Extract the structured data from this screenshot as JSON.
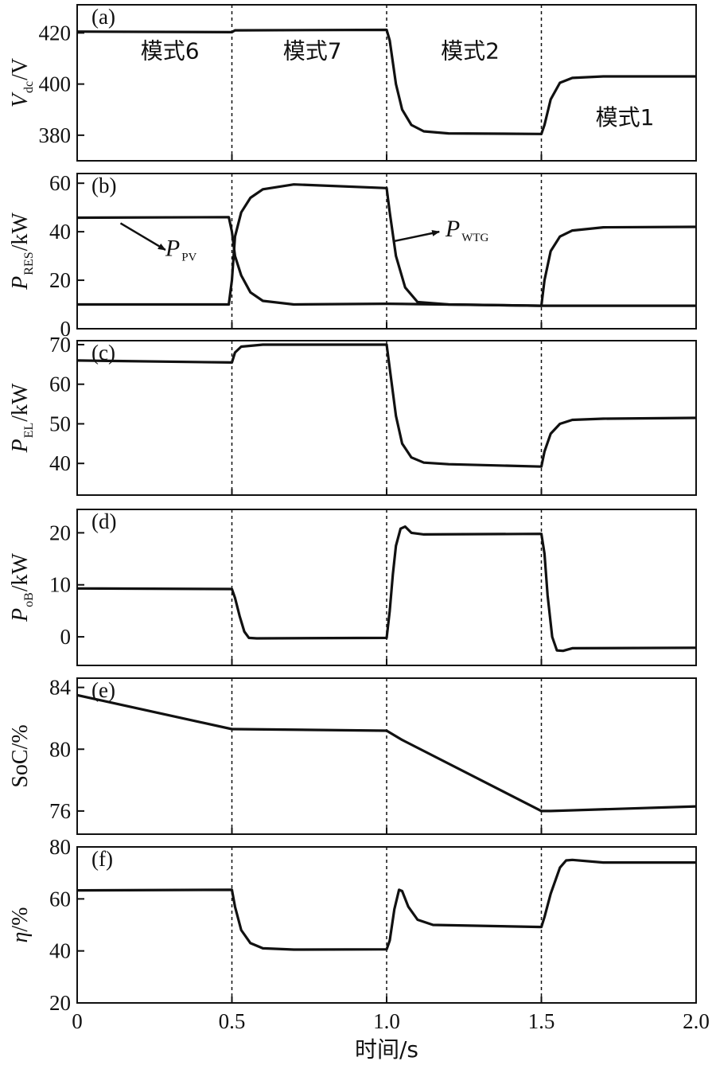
{
  "chart_data": [
    {
      "type": "line",
      "panel_label": "(a)",
      "ylabel": {
        "symbol": "V",
        "sub": "dc",
        "unit": "/V"
      },
      "xlim": [
        0,
        2.0
      ],
      "ylim": [
        370,
        431
      ],
      "yticks": [
        {
          "v": 380,
          "label": "380"
        },
        {
          "v": 400,
          "label": "400"
        },
        {
          "v": 420,
          "label": "420"
        }
      ],
      "mode_labels": [
        {
          "text": "模式6",
          "x": 0.3,
          "y": 410
        },
        {
          "text": "模式7",
          "x": 0.76,
          "y": 410
        },
        {
          "text": "模式2",
          "x": 1.27,
          "y": 410
        },
        {
          "text": "模式1",
          "x": 1.77,
          "y": 384
        }
      ],
      "series": [
        {
          "values": [
            [
              0,
              420.5
            ],
            [
              0.5,
              420.3
            ],
            [
              0.51,
              421.0
            ],
            [
              1.0,
              421.2
            ],
            [
              1.01,
              417
            ],
            [
              1.03,
              400
            ],
            [
              1.05,
              390
            ],
            [
              1.08,
              384
            ],
            [
              1.12,
              381.5
            ],
            [
              1.2,
              380.7
            ],
            [
              1.5,
              380.5
            ],
            [
              1.51,
              384
            ],
            [
              1.53,
              394
            ],
            [
              1.56,
              400.5
            ],
            [
              1.6,
              402.4
            ],
            [
              1.7,
              403
            ],
            [
              2.0,
              403
            ]
          ]
        }
      ]
    },
    {
      "type": "line",
      "panel_label": "(b)",
      "ylabel": {
        "symbol": "P",
        "sub": "RES",
        "unit": "/kW"
      },
      "xlim": [
        0,
        2.0
      ],
      "ylim": [
        0,
        64
      ],
      "yticks": [
        {
          "v": 0,
          "label": "0"
        },
        {
          "v": 20,
          "label": "20"
        },
        {
          "v": 40,
          "label": "40"
        },
        {
          "v": 60,
          "label": "60"
        }
      ],
      "annotations": [
        {
          "symbol": "P",
          "sub": "PV",
          "text_x": 0.285,
          "text_y": 30,
          "arrow_from": [
            0.14,
            43.5
          ],
          "arrow_to": [
            0.285,
            32.5
          ]
        },
        {
          "symbol": "P",
          "sub": "WTG",
          "text_x": 1.19,
          "text_y": 38,
          "arrow_from": [
            1.02,
            36
          ],
          "arrow_to": [
            1.17,
            40
          ]
        }
      ],
      "series": [
        {
          "values": [
            [
              0,
              45.8
            ],
            [
              0.49,
              46
            ],
            [
              0.5,
              40
            ],
            [
              0.51,
              30
            ],
            [
              0.53,
              22
            ],
            [
              0.56,
              15
            ],
            [
              0.6,
              11.5
            ],
            [
              0.7,
              10
            ],
            [
              1.0,
              10.3
            ],
            [
              1.5,
              9.5
            ],
            [
              2.0,
              9.5
            ]
          ]
        },
        {
          "values": [
            [
              0,
              10
            ],
            [
              0.49,
              10
            ],
            [
              0.5,
              20
            ],
            [
              0.51,
              38
            ],
            [
              0.53,
              48
            ],
            [
              0.56,
              54
            ],
            [
              0.6,
              57.5
            ],
            [
              0.7,
              59.5
            ],
            [
              1.0,
              58
            ],
            [
              1.01,
              48
            ],
            [
              1.03,
              30
            ],
            [
              1.06,
              17
            ],
            [
              1.1,
              11
            ],
            [
              1.2,
              10
            ],
            [
              1.5,
              9.5
            ],
            [
              1.51,
              20
            ],
            [
              1.53,
              32
            ],
            [
              1.56,
              38
            ],
            [
              1.6,
              40.5
            ],
            [
              1.7,
              41.8
            ],
            [
              2.0,
              42
            ]
          ]
        }
      ]
    },
    {
      "type": "line",
      "panel_label": "(c)",
      "ylabel": {
        "symbol": "P",
        "sub": "EL",
        "unit": "/kW"
      },
      "xlim": [
        0,
        2.0
      ],
      "ylim": [
        32,
        71
      ],
      "yticks": [
        {
          "v": 40,
          "label": "40"
        },
        {
          "v": 50,
          "label": "50"
        },
        {
          "v": 60,
          "label": "60"
        },
        {
          "v": 70,
          "label": "70"
        }
      ],
      "series": [
        {
          "values": [
            [
              0,
              66
            ],
            [
              0.5,
              65.5
            ],
            [
              0.51,
              68
            ],
            [
              0.53,
              69.5
            ],
            [
              0.6,
              70
            ],
            [
              1.0,
              70
            ],
            [
              1.01,
              64
            ],
            [
              1.03,
              52
            ],
            [
              1.05,
              45
            ],
            [
              1.08,
              41.5
            ],
            [
              1.12,
              40.2
            ],
            [
              1.2,
              39.8
            ],
            [
              1.5,
              39.2
            ],
            [
              1.51,
              43
            ],
            [
              1.53,
              47.5
            ],
            [
              1.56,
              50
            ],
            [
              1.6,
              51
            ],
            [
              1.7,
              51.3
            ],
            [
              2.0,
              51.5
            ]
          ]
        }
      ]
    },
    {
      "type": "line",
      "panel_label": "(d)",
      "ylabel": {
        "symbol": "P",
        "sub": "oB",
        "unit": "/kW"
      },
      "xlim": [
        0,
        2.0
      ],
      "ylim": [
        -5.5,
        24.5
      ],
      "yticks": [
        {
          "v": 0,
          "label": "0"
        },
        {
          "v": 10,
          "label": "10"
        },
        {
          "v": 20,
          "label": "20"
        }
      ],
      "series": [
        {
          "values": [
            [
              0,
              9.3
            ],
            [
              0.5,
              9.2
            ],
            [
              0.51,
              7.5
            ],
            [
              0.525,
              4
            ],
            [
              0.54,
              1
            ],
            [
              0.555,
              -0.2
            ],
            [
              0.58,
              -0.3
            ],
            [
              1.0,
              -0.2
            ],
            [
              1.01,
              5
            ],
            [
              1.02,
              12
            ],
            [
              1.03,
              17.5
            ],
            [
              1.045,
              20.8
            ],
            [
              1.06,
              21.2
            ],
            [
              1.08,
              20
            ],
            [
              1.12,
              19.7
            ],
            [
              1.5,
              19.8
            ],
            [
              1.51,
              16
            ],
            [
              1.52,
              8
            ],
            [
              1.535,
              0
            ],
            [
              1.55,
              -2.6
            ],
            [
              1.57,
              -2.7
            ],
            [
              1.6,
              -2.2
            ],
            [
              2.0,
              -2.1
            ]
          ]
        }
      ]
    },
    {
      "type": "line",
      "panel_label": "(e)",
      "ylabel": {
        "text": "SoC/%"
      },
      "xlim": [
        0,
        2.0
      ],
      "ylim": [
        74.5,
        84.6
      ],
      "yticks": [
        {
          "v": 76,
          "label": "76"
        },
        {
          "v": 80,
          "label": "80"
        },
        {
          "v": 84,
          "label": "84"
        }
      ],
      "series": [
        {
          "values": [
            [
              0,
              83.5
            ],
            [
              0.5,
              81.3
            ],
            [
              0.51,
              81.3
            ],
            [
              1.0,
              81.2
            ],
            [
              1.05,
              80.6
            ],
            [
              1.5,
              76
            ],
            [
              1.53,
              76
            ],
            [
              2.0,
              76.3
            ]
          ]
        }
      ]
    },
    {
      "type": "line",
      "panel_label": "(f)",
      "ylabel": {
        "symbol": "η",
        "unit": "/%"
      },
      "xlim": [
        0,
        2.0
      ],
      "xticks": [
        {
          "v": 0,
          "label": "0"
        },
        {
          "v": 0.5,
          "label": "0.5"
        },
        {
          "v": 1.0,
          "label": "1.0"
        },
        {
          "v": 1.5,
          "label": "1.5"
        },
        {
          "v": 2.0,
          "label": "2.0"
        }
      ],
      "xlabel": "时间/s",
      "ylim": [
        20,
        80
      ],
      "yticks": [
        {
          "v": 20,
          "label": "20"
        },
        {
          "v": 40,
          "label": "40"
        },
        {
          "v": 60,
          "label": "60"
        },
        {
          "v": 80,
          "label": "80"
        }
      ],
      "series": [
        {
          "values": [
            [
              0,
              63.3
            ],
            [
              0.5,
              63.5
            ],
            [
              0.51,
              57
            ],
            [
              0.53,
              48
            ],
            [
              0.56,
              43
            ],
            [
              0.6,
              41
            ],
            [
              0.7,
              40.5
            ],
            [
              1.0,
              40.6
            ],
            [
              1.01,
              44
            ],
            [
              1.025,
              56
            ],
            [
              1.04,
              63.5
            ],
            [
              1.05,
              63
            ],
            [
              1.07,
              57
            ],
            [
              1.1,
              52
            ],
            [
              1.15,
              50
            ],
            [
              1.5,
              49.2
            ],
            [
              1.51,
              53
            ],
            [
              1.53,
              62
            ],
            [
              1.56,
              72
            ],
            [
              1.58,
              74.8
            ],
            [
              1.6,
              75
            ],
            [
              1.7,
              74
            ],
            [
              2.0,
              74
            ]
          ]
        }
      ]
    }
  ]
}
